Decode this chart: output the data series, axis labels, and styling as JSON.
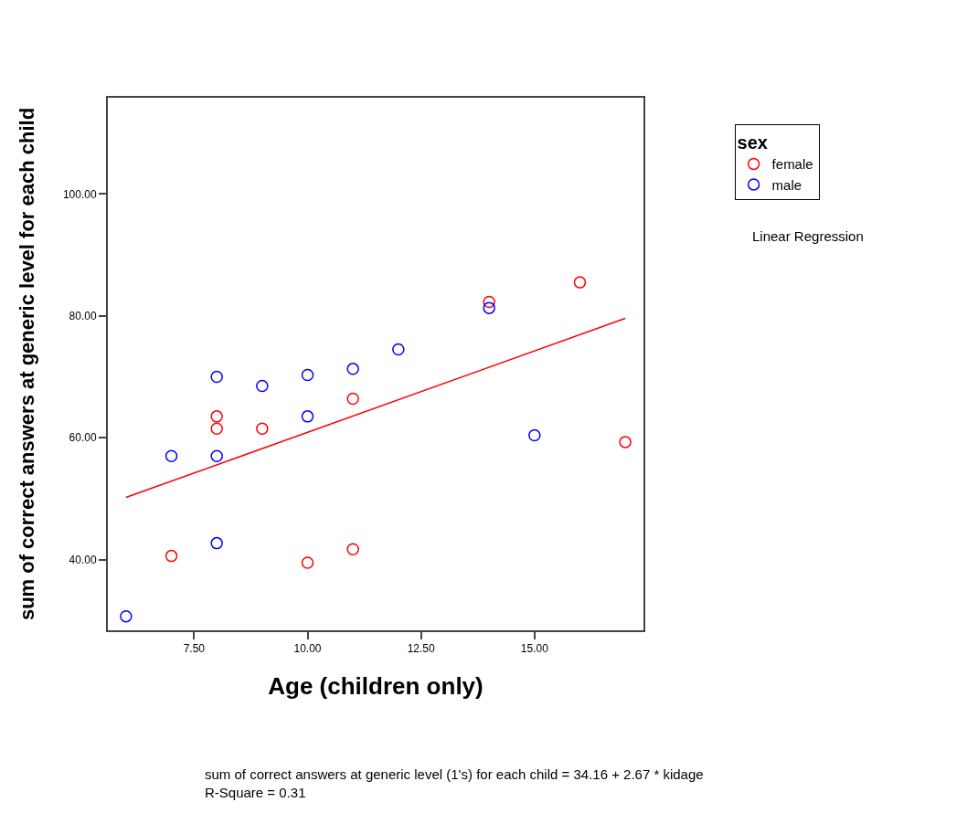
{
  "chart_data": {
    "type": "scatter",
    "xlabel": "Age (children only)",
    "ylabel": "sum of correct answers at generic level for each child",
    "legend_title": "sex",
    "series": [
      {
        "name": "female",
        "color": "#ff0000",
        "x": [
          7,
          8,
          8,
          9,
          10,
          11,
          11,
          14,
          16,
          17
        ],
        "values": [
          40.6,
          63.5,
          61.5,
          61.5,
          39.5,
          66.4,
          41.7,
          82.3,
          85.5,
          59.3
        ]
      },
      {
        "name": "male",
        "color": "#0000ff",
        "x": [
          6,
          7,
          8,
          8,
          8,
          9,
          10,
          10,
          11,
          12,
          14,
          15
        ],
        "values": [
          30.7,
          57,
          70,
          57,
          42.7,
          68.5,
          70.3,
          63.5,
          71.3,
          74.5,
          81.3,
          60.4
        ]
      },
      {
        "type": "line",
        "marker": "none",
        "color": "#ff0000",
        "x": [
          6,
          17
        ],
        "values": [
          50.2,
          79.6
        ]
      }
    ],
    "xlim": [
      5.6,
      17.4
    ],
    "ylim": [
      28.4,
      115.8
    ],
    "xticks": [
      {
        "value": 7.5,
        "label": "7.50"
      },
      {
        "value": 10,
        "label": "10.00"
      },
      {
        "value": 12.5,
        "label": "12.50"
      },
      {
        "value": 15,
        "label": "15.00"
      }
    ],
    "yticks": [
      {
        "value": 40,
        "label": "40.00"
      },
      {
        "value": 60,
        "label": "60.00"
      },
      {
        "value": 80,
        "label": "80.00"
      },
      {
        "value": 100,
        "label": "100.00"
      }
    ],
    "marker": "circle",
    "legend": "top right",
    "annotations": [
      "Linear Regression",
      "sum of correct answers at generic level (1's) for each child = 34.16 + 2.67 * kidage",
      "R-Square = 0.31"
    ]
  }
}
